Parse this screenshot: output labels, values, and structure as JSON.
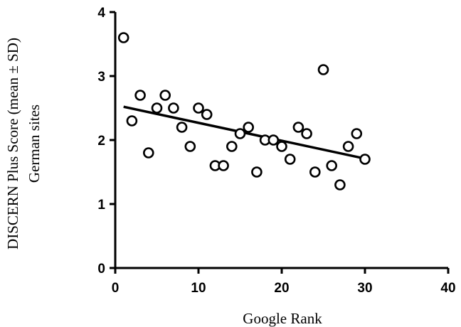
{
  "chart_data": {
    "type": "scatter",
    "xlabel": "Google Rank",
    "ylabel_lines": [
      "DISCERN Plus Score (mean ± SD)",
      "German sites"
    ],
    "xlim": [
      0,
      40
    ],
    "ylim": [
      0,
      4
    ],
    "x_ticks": [
      0,
      10,
      20,
      30,
      40
    ],
    "y_ticks": [
      0,
      1,
      2,
      3,
      4
    ],
    "x_tick_labels": [
      "0",
      "10",
      "20",
      "30",
      "40"
    ],
    "y_tick_labels": [
      "0",
      "1",
      "2",
      "3",
      "4"
    ],
    "grid": false,
    "points": [
      {
        "x": 1,
        "y": 3.6
      },
      {
        "x": 2,
        "y": 2.3
      },
      {
        "x": 3,
        "y": 2.7
      },
      {
        "x": 4,
        "y": 1.8
      },
      {
        "x": 5,
        "y": 2.5
      },
      {
        "x": 6,
        "y": 2.7
      },
      {
        "x": 7,
        "y": 2.5
      },
      {
        "x": 8,
        "y": 2.2
      },
      {
        "x": 9,
        "y": 1.9
      },
      {
        "x": 10,
        "y": 2.5
      },
      {
        "x": 11,
        "y": 2.4
      },
      {
        "x": 12,
        "y": 1.6
      },
      {
        "x": 13,
        "y": 1.6
      },
      {
        "x": 14,
        "y": 1.9
      },
      {
        "x": 15,
        "y": 2.1
      },
      {
        "x": 16,
        "y": 2.2
      },
      {
        "x": 17,
        "y": 1.5
      },
      {
        "x": 18,
        "y": 2.0
      },
      {
        "x": 19,
        "y": 2.0
      },
      {
        "x": 20,
        "y": 1.9
      },
      {
        "x": 21,
        "y": 1.7
      },
      {
        "x": 22,
        "y": 2.2
      },
      {
        "x": 23,
        "y": 2.1
      },
      {
        "x": 24,
        "y": 1.5
      },
      {
        "x": 25,
        "y": 3.1
      },
      {
        "x": 26,
        "y": 1.6
      },
      {
        "x": 27,
        "y": 1.3
      },
      {
        "x": 28,
        "y": 1.9
      },
      {
        "x": 29,
        "y": 2.1
      },
      {
        "x": 30,
        "y": 1.7
      }
    ],
    "trendline": {
      "x": [
        1,
        30
      ],
      "y": [
        2.52,
        1.71
      ]
    }
  }
}
